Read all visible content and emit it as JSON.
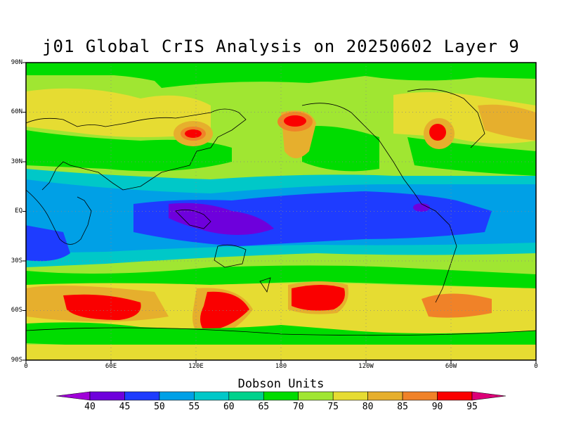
{
  "title": "j01 Global CrIS Analysis on 20250602 Layer 9",
  "lat_labels": [
    "90N",
    "60N",
    "30N",
    "EQ",
    "30S",
    "60S",
    "90S"
  ],
  "lon_labels": [
    "0",
    "60E",
    "120E",
    "180",
    "120W",
    "60W",
    "0"
  ],
  "colorbar": {
    "title": "Dobson Units",
    "levels": [
      "40",
      "45",
      "50",
      "55",
      "60",
      "65",
      "70",
      "75",
      "80",
      "85",
      "90",
      "95"
    ],
    "colors": [
      "#a000d8",
      "#6e00dc",
      "#1e3cff",
      "#00a0e6",
      "#00c8c8",
      "#00d28c",
      "#00dc00",
      "#a0e632",
      "#e6dc32",
      "#e6af2d",
      "#f08228",
      "#fa0000",
      "#dc0078"
    ]
  },
  "map": {
    "background": "#a0e632",
    "lon_range": [
      0,
      360
    ],
    "lat_range": [
      -90,
      90
    ],
    "gridlines": "dotted every 60° lon, 30° lat",
    "coastlines": true
  }
}
